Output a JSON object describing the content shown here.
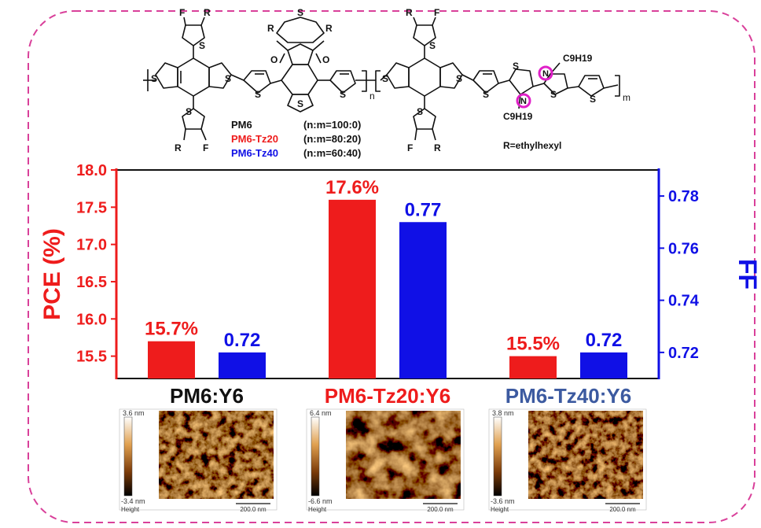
{
  "colors": {
    "pce": "#ee1c1c",
    "ff": "#1010e6",
    "frame": "#d9409a",
    "highlight": "#e020c8",
    "label_black": "#111111",
    "label_red": "#ee1c1c",
    "label_blue": "#3c5aa0"
  },
  "structure": {
    "r_label": "R=ethylhexyl",
    "atom_f": "F",
    "atom_s": "S",
    "atom_o": "O",
    "atom_n": "N",
    "atom_r": "R",
    "alkyl": "C9H19",
    "sub_n": "n",
    "sub_m": "m",
    "legend": [
      {
        "name": "PM6",
        "ratio": "(n:m=100:0)",
        "color": "#111111"
      },
      {
        "name": "PM6-Tz20",
        "ratio": "(n:m=80:20)",
        "color": "#ee1c1c"
      },
      {
        "name": "PM6-Tz40",
        "ratio": "(n:m=60:40)",
        "color": "#1010e6"
      }
    ]
  },
  "chart_data": {
    "type": "bar",
    "categories": [
      "PM6:Y6",
      "PM6-Tz20:Y6",
      "PM6-Tz40:Y6"
    ],
    "category_colors": [
      "#111111",
      "#ee1c1c",
      "#3c5aa0"
    ],
    "series": [
      {
        "name": "PCE",
        "axis": "left",
        "values": [
          15.7,
          17.6,
          15.5
        ],
        "labels": [
          "15.7%",
          "17.6%",
          "15.5%"
        ],
        "color": "#ee1c1c"
      },
      {
        "name": "FF",
        "axis": "right",
        "values": [
          0.72,
          0.77,
          0.72
        ],
        "labels": [
          "0.72",
          "0.77",
          "0.72"
        ],
        "color": "#1010e6"
      }
    ],
    "ylabel": "PCE (%)",
    "y2label": "FF",
    "ylim": [
      15.2,
      18.0
    ],
    "y2lim": [
      0.71,
      0.79
    ],
    "yticks": [
      15.5,
      16.0,
      16.5,
      17.0,
      17.5,
      18.0
    ],
    "yticklabels": [
      "15.5",
      "16.0",
      "16.5",
      "17.0",
      "17.5",
      "18.0"
    ],
    "y2ticks": [
      0.72,
      0.74,
      0.76,
      0.78
    ],
    "y2ticklabels": [
      "0.72",
      "0.74",
      "0.76",
      "0.78"
    ]
  },
  "afm": [
    {
      "max": "3.6 nm",
      "min": "-3.4 nm",
      "caption": "Height",
      "scale": "200.0 nm"
    },
    {
      "max": "6.4 nm",
      "min": "-6.6 nm",
      "caption": "Height",
      "scale": "200.0 nm"
    },
    {
      "max": "3.8 nm",
      "min": "-3.6 nm",
      "caption": "Height",
      "scale": "200.0 nm"
    }
  ]
}
